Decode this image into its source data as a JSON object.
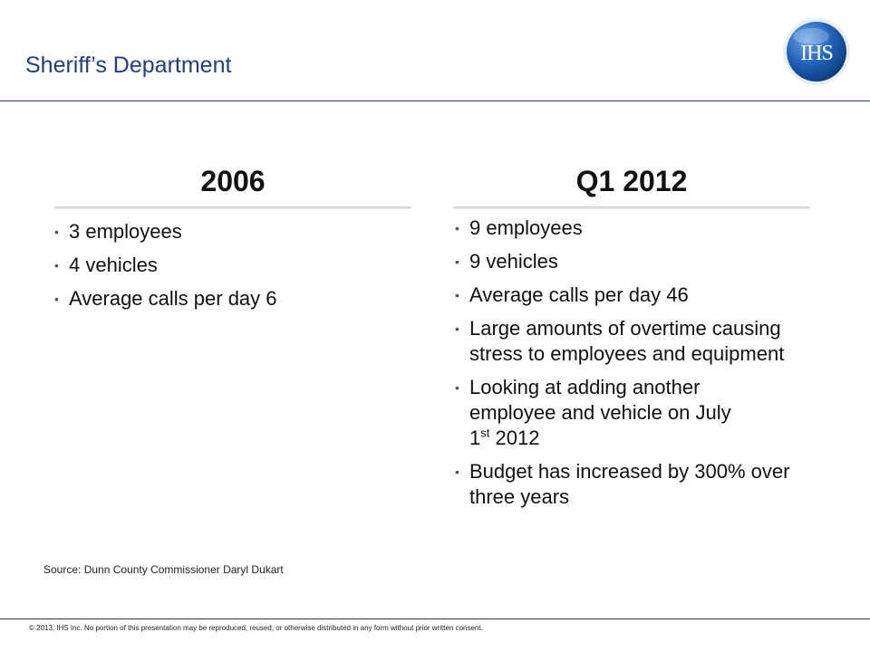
{
  "slide": {
    "title": "Sheriff’s Department",
    "logo_text": "IHS"
  },
  "left": {
    "heading": "2006",
    "bullets": [
      "3 employees",
      "4 vehicles",
      "Average calls per day 6"
    ]
  },
  "right": {
    "heading": "Q1 2012",
    "bullets": [
      "9 employees",
      "9 vehicles",
      "Average calls per day 46",
      "Large amounts of overtime causing stress to employees and equipment",
      "Budget has increased by 300% over three years"
    ],
    "july_bullet": {
      "line1": "Looking at adding another",
      "line2": "employee and vehicle on July",
      "line3_pre": "1",
      "line3_sup": "st",
      "line3_post": " 2012"
    }
  },
  "source": "Source: Dunn County Commissioner Daryl Dukart",
  "footer": "© 2013, IHS Inc. No portion of this presentation may be reproduced, reused, or otherwise distributed in any form without prior written consent.",
  "colors": {
    "title": "#1f3f7f",
    "rule": "#1f3f7f",
    "logo": "#1b5aa6"
  }
}
